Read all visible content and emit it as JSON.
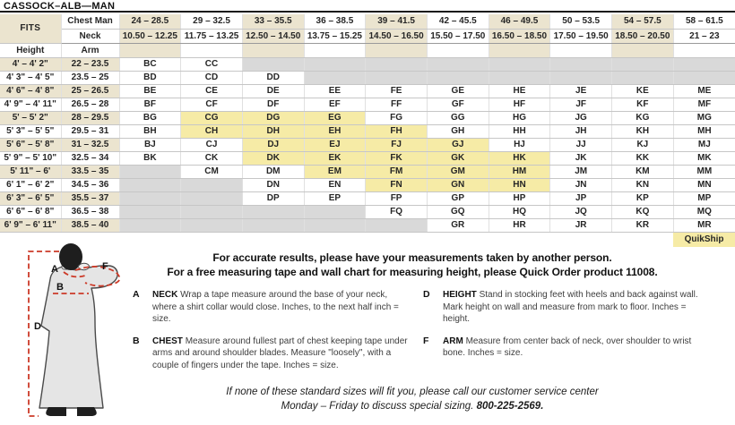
{
  "title": "CASSOCK–ALB—MAN",
  "colors": {
    "highlight": "#f6eba6",
    "tint": "#ebe4cf",
    "unavailable": "#d9d9d9",
    "measure_line": "#cc3a28"
  },
  "table": {
    "fits_label": "FITS",
    "chest_label": "Chest Man",
    "neck_label": "Neck",
    "height_label": "Height",
    "arm_label": "Arm",
    "quikship_label": "QuikShip",
    "chest_ranges": [
      "24 – 28.5",
      "29 – 32.5",
      "33 – 35.5",
      "36 – 38.5",
      "39 – 41.5",
      "42 – 45.5",
      "46 – 49.5",
      "50 – 53.5",
      "54 – 57.5",
      "58 – 61.5"
    ],
    "neck_ranges": [
      "10.50 – 12.25",
      "11.75 – 13.25",
      "12.50 – 14.50",
      "13.75 – 15.25",
      "14.50 – 16.50",
      "15.50 – 17.50",
      "16.50 – 18.50",
      "17.50 – 19.50",
      "18.50 – 20.50",
      "21 – 23"
    ],
    "rows": [
      {
        "height": "4' – 4' 2\"",
        "arm": "22 – 23.5",
        "cells": [
          {
            "c": "BC"
          },
          {
            "c": "CC"
          },
          {
            "x": true
          },
          {
            "x": true
          },
          {
            "x": true
          },
          {
            "x": true
          },
          {
            "x": true
          },
          {
            "x": true
          },
          {
            "x": true
          },
          {
            "x": true
          }
        ]
      },
      {
        "height": "4' 3\" – 4' 5\"",
        "arm": "23.5 – 25",
        "cells": [
          {
            "c": "BD"
          },
          {
            "c": "CD"
          },
          {
            "c": "DD"
          },
          {
            "x": true
          },
          {
            "x": true
          },
          {
            "x": true
          },
          {
            "x": true
          },
          {
            "x": true
          },
          {
            "x": true
          },
          {
            "x": true
          }
        ]
      },
      {
        "height": "4' 6\" – 4' 8\"",
        "arm": "25 – 26.5",
        "cells": [
          {
            "c": "BE"
          },
          {
            "c": "CE"
          },
          {
            "c": "DE"
          },
          {
            "c": "EE"
          },
          {
            "c": "FE"
          },
          {
            "c": "GE"
          },
          {
            "c": "HE"
          },
          {
            "c": "JE"
          },
          {
            "c": "KE"
          },
          {
            "c": "ME"
          }
        ]
      },
      {
        "height": "4' 9\" – 4' 11\"",
        "arm": "26.5 – 28",
        "cells": [
          {
            "c": "BF"
          },
          {
            "c": "CF"
          },
          {
            "c": "DF"
          },
          {
            "c": "EF"
          },
          {
            "c": "FF"
          },
          {
            "c": "GF"
          },
          {
            "c": "HF"
          },
          {
            "c": "JF"
          },
          {
            "c": "KF"
          },
          {
            "c": "MF"
          }
        ]
      },
      {
        "height": "5' – 5' 2\"",
        "arm": "28 – 29.5",
        "cells": [
          {
            "c": "BG"
          },
          {
            "c": "CG",
            "hl": true
          },
          {
            "c": "DG",
            "hl": true
          },
          {
            "c": "EG",
            "hl": true
          },
          {
            "c": "FG"
          },
          {
            "c": "GG"
          },
          {
            "c": "HG"
          },
          {
            "c": "JG"
          },
          {
            "c": "KG"
          },
          {
            "c": "MG"
          }
        ]
      },
      {
        "height": "5' 3\" – 5' 5\"",
        "arm": "29.5 – 31",
        "cells": [
          {
            "c": "BH"
          },
          {
            "c": "CH",
            "hl": true
          },
          {
            "c": "DH",
            "hl": true
          },
          {
            "c": "EH",
            "hl": true
          },
          {
            "c": "FH",
            "hl": true
          },
          {
            "c": "GH"
          },
          {
            "c": "HH"
          },
          {
            "c": "JH"
          },
          {
            "c": "KH"
          },
          {
            "c": "MH"
          }
        ]
      },
      {
        "height": "5' 6\" – 5' 8\"",
        "arm": "31 – 32.5",
        "cells": [
          {
            "c": "BJ"
          },
          {
            "c": "CJ"
          },
          {
            "c": "DJ",
            "hl": true
          },
          {
            "c": "EJ",
            "hl": true
          },
          {
            "c": "FJ",
            "hl": true
          },
          {
            "c": "GJ",
            "hl": true
          },
          {
            "c": "HJ"
          },
          {
            "c": "JJ"
          },
          {
            "c": "KJ"
          },
          {
            "c": "MJ"
          }
        ]
      },
      {
        "height": "5' 9\" – 5' 10\"",
        "arm": "32.5 – 34",
        "cells": [
          {
            "c": "BK"
          },
          {
            "c": "CK"
          },
          {
            "c": "DK",
            "hl": true
          },
          {
            "c": "EK",
            "hl": true
          },
          {
            "c": "FK",
            "hl": true
          },
          {
            "c": "GK",
            "hl": true
          },
          {
            "c": "HK",
            "hl": true
          },
          {
            "c": "JK"
          },
          {
            "c": "KK"
          },
          {
            "c": "MK"
          }
        ]
      },
      {
        "height": "5' 11\" – 6'",
        "arm": "33.5 – 35",
        "cells": [
          {
            "x": true
          },
          {
            "c": "CM"
          },
          {
            "c": "DM"
          },
          {
            "c": "EM",
            "hl": true
          },
          {
            "c": "FM",
            "hl": true
          },
          {
            "c": "GM",
            "hl": true
          },
          {
            "c": "HM",
            "hl": true
          },
          {
            "c": "JM"
          },
          {
            "c": "KM"
          },
          {
            "c": "MM"
          }
        ]
      },
      {
        "height": "6' 1\" – 6' 2\"",
        "arm": "34.5 – 36",
        "cells": [
          {
            "x": true
          },
          {
            "x": true
          },
          {
            "c": "DN"
          },
          {
            "c": "EN"
          },
          {
            "c": "FN",
            "hl": true
          },
          {
            "c": "GN",
            "hl": true
          },
          {
            "c": "HN",
            "hl": true
          },
          {
            "c": "JN"
          },
          {
            "c": "KN"
          },
          {
            "c": "MN"
          }
        ]
      },
      {
        "height": "6' 3\" – 6' 5\"",
        "arm": "35.5 – 37",
        "cells": [
          {
            "x": true
          },
          {
            "x": true
          },
          {
            "c": "DP"
          },
          {
            "c": "EP"
          },
          {
            "c": "FP"
          },
          {
            "c": "GP"
          },
          {
            "c": "HP"
          },
          {
            "c": "JP"
          },
          {
            "c": "KP"
          },
          {
            "c": "MP"
          }
        ]
      },
      {
        "height": "6' 6\" – 6' 8\"",
        "arm": "36.5 – 38",
        "cells": [
          {
            "x": true
          },
          {
            "x": true
          },
          {
            "x": true
          },
          {
            "x": true
          },
          {
            "c": "FQ"
          },
          {
            "c": "GQ"
          },
          {
            "c": "HQ"
          },
          {
            "c": "JQ"
          },
          {
            "c": "KQ"
          },
          {
            "c": "MQ"
          }
        ]
      },
      {
        "height": "6' 9\" – 6' 11\"",
        "arm": "38.5 – 40",
        "cells": [
          {
            "x": true
          },
          {
            "x": true
          },
          {
            "x": true
          },
          {
            "x": true
          },
          {
            "x": true
          },
          {
            "c": "GR"
          },
          {
            "c": "HR"
          },
          {
            "c": "JR"
          },
          {
            "c": "KR"
          },
          {
            "c": "MR"
          }
        ]
      }
    ]
  },
  "intro": {
    "line1": "For accurate results, please have your measurements taken by another person.",
    "line2": "For a free measuring tape and wall chart for measuring height, please Quick Order product 11008."
  },
  "definitions": [
    {
      "letter": "A",
      "term": "NECK",
      "text": "Wrap a tape measure around the base of your neck, where a shirt collar would close. Inches, to the next half inch = size."
    },
    {
      "letter": "B",
      "term": "CHEST",
      "text": "Measure around fullest part of chest keeping tape under arms and around shoulder blades. Measure \"loosely\", with a couple of fingers under the tape. Inches = size."
    },
    {
      "letter": "D",
      "term": "HEIGHT",
      "text": "Stand in stocking feet with heels and back against wall. Mark height on wall and measure from mark to floor. Inches = height."
    },
    {
      "letter": "F",
      "term": "ARM",
      "text": "Measure from center back of neck, over shoulder to wrist bone. Inches = size."
    }
  ],
  "figure": {
    "labels": [
      "A",
      "B",
      "D",
      "F"
    ]
  },
  "footer": {
    "line1": "If none of these standard sizes will fit you, please call our customer service center",
    "line2_prefix": "Monday – Friday to discuss special sizing. ",
    "phone": "800-225-2569."
  }
}
